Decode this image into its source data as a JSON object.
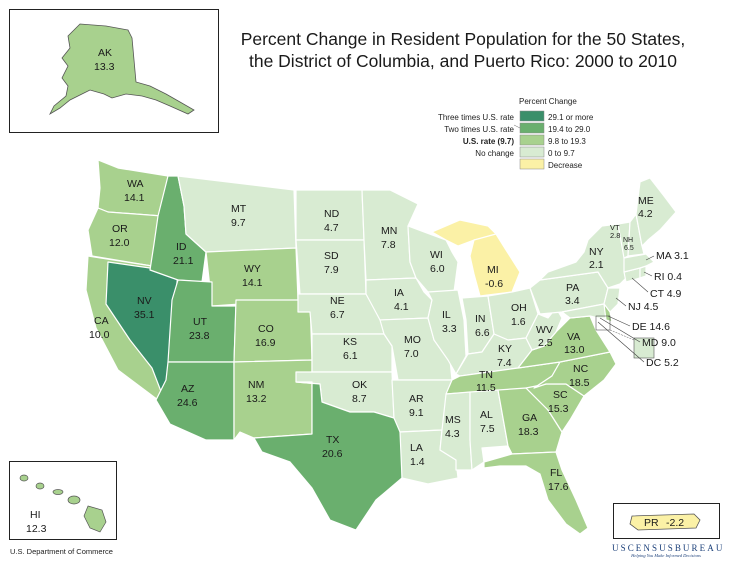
{
  "title": {
    "line1": "Percent Change in Resident Population for the 50 States,",
    "line2": "the District of Columbia, and Puerto Rico:  2000 to 2010"
  },
  "legend": {
    "heading": "Percent Change",
    "items": [
      {
        "label": "Three times U.S. rate",
        "range": "29.1 or more",
        "color": "#3a8f6a"
      },
      {
        "label": "Two times U.S. rate",
        "range": "19.4 to 29.0",
        "color": "#6aaf6e"
      },
      {
        "label": "U.S. rate (9.7)",
        "range": "9.8 to 19.3",
        "color": "#a8d18e"
      },
      {
        "label": "No change",
        "range": "0 to 9.7",
        "color": "#d8ebd2"
      },
      {
        "label": "",
        "range": "Decrease",
        "color": "#fbf1a6"
      }
    ]
  },
  "states": {
    "WA": {
      "abbr": "WA",
      "value": "14.1"
    },
    "OR": {
      "abbr": "OR",
      "value": "12.0"
    },
    "CA": {
      "abbr": "CA",
      "value": "10.0"
    },
    "NV": {
      "abbr": "NV",
      "value": "35.1"
    },
    "ID": {
      "abbr": "ID",
      "value": "21.1"
    },
    "MT": {
      "abbr": "MT",
      "value": "9.7"
    },
    "WY": {
      "abbr": "WY",
      "value": "14.1"
    },
    "UT": {
      "abbr": "UT",
      "value": "23.8"
    },
    "CO": {
      "abbr": "CO",
      "value": "16.9"
    },
    "AZ": {
      "abbr": "AZ",
      "value": "24.6"
    },
    "NM": {
      "abbr": "NM",
      "value": "13.2"
    },
    "ND": {
      "abbr": "ND",
      "value": "4.7"
    },
    "SD": {
      "abbr": "SD",
      "value": "7.9"
    },
    "NE": {
      "abbr": "NE",
      "value": "6.7"
    },
    "KS": {
      "abbr": "KS",
      "value": "6.1"
    },
    "OK": {
      "abbr": "OK",
      "value": "8.7"
    },
    "TX": {
      "abbr": "TX",
      "value": "20.6"
    },
    "MN": {
      "abbr": "MN",
      "value": "7.8"
    },
    "IA": {
      "abbr": "IA",
      "value": "4.1"
    },
    "MO": {
      "abbr": "MO",
      "value": "7.0"
    },
    "AR": {
      "abbr": "AR",
      "value": "9.1"
    },
    "LA": {
      "abbr": "LA",
      "value": "1.4"
    },
    "WI": {
      "abbr": "WI",
      "value": "6.0"
    },
    "IL": {
      "abbr": "IL",
      "value": "3.3"
    },
    "MI": {
      "abbr": "MI",
      "value": "-0.6"
    },
    "IN": {
      "abbr": "IN",
      "value": "6.6"
    },
    "OH": {
      "abbr": "OH",
      "value": "1.6"
    },
    "KY": {
      "abbr": "KY",
      "value": "7.4"
    },
    "TN": {
      "abbr": "TN",
      "value": "11.5"
    },
    "MS": {
      "abbr": "MS",
      "value": "4.3"
    },
    "AL": {
      "abbr": "AL",
      "value": "7.5"
    },
    "GA": {
      "abbr": "GA",
      "value": "18.3"
    },
    "FL": {
      "abbr": "FL",
      "value": "17.6"
    },
    "SC": {
      "abbr": "SC",
      "value": "15.3"
    },
    "NC": {
      "abbr": "NC",
      "value": "18.5"
    },
    "VA": {
      "abbr": "VA",
      "value": "13.0"
    },
    "WV": {
      "abbr": "WV",
      "value": "2.5"
    },
    "PA": {
      "abbr": "PA",
      "value": "3.4"
    },
    "NY": {
      "abbr": "NY",
      "value": "2.1"
    },
    "VT": {
      "abbr": "VT",
      "value": "2.8"
    },
    "NH": {
      "abbr": "NH",
      "value": "6.5"
    },
    "ME": {
      "abbr": "ME",
      "value": "4.2"
    },
    "AK": {
      "abbr": "AK",
      "value": "13.3"
    },
    "HI": {
      "abbr": "HI",
      "value": "12.3"
    },
    "PR": {
      "abbr": "PR",
      "value": "-2.2"
    }
  },
  "callouts": {
    "MA": "MA  3.1",
    "RI": "RI  0.4",
    "CT": "CT  4.9",
    "NJ": "NJ  4.5",
    "DE": "DE  14.6",
    "MD": "MD  9.0",
    "DC": "DC  5.2"
  },
  "footer": {
    "left": "U.S. Department of Commerce",
    "brand": "USCENSUSBUREAU",
    "tagline": "Helping You Make Informed Decisions"
  }
}
